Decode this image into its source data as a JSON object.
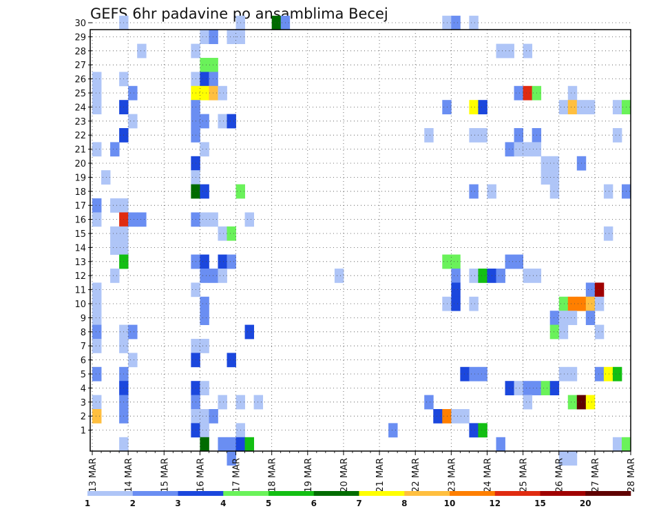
{
  "chart_data": {
    "type": "heatmap",
    "title": "GEFS 6hr padavine po ansamblima Becej",
    "xlabel": "",
    "ylabel": "",
    "x_ticks": [
      "13 MAR",
      "14 MAR",
      "15 MAR",
      "16 MAR",
      "17 MAR",
      "18 MAR",
      "19 MAR",
      "20 MAR",
      "21 MAR",
      "22 MAR",
      "23 MAR",
      "24 MAR",
      "25 MAR",
      "26 MAR",
      "27 MAR",
      "28 MAR"
    ],
    "xlim": [
      0,
      60
    ],
    "x_unit": "6-hour steps after 13 MAR 00Z",
    "y_ticks": [
      1,
      2,
      3,
      4,
      5,
      6,
      7,
      8,
      9,
      10,
      11,
      12,
      13,
      14,
      15,
      16,
      17,
      18,
      19,
      20,
      21,
      22,
      23,
      24,
      25,
      26,
      27,
      28,
      29,
      30
    ],
    "ylim": [
      0,
      30
    ],
    "grid": true,
    "legend": {
      "placement": "bottom",
      "labels": [
        "1",
        "2",
        "3",
        "4",
        "5",
        "6",
        "7",
        "8",
        "10",
        "12",
        "15",
        "20"
      ],
      "colors": [
        "#afc5f7",
        "#6a8ef2",
        "#1b47dd",
        "#6af25a",
        "#13bf13",
        "#006b00",
        "#ffff00",
        "#ffbf3f",
        "#ff7f00",
        "#e02b10",
        "#a00000",
        "#5f0000"
      ]
    },
    "cells": [
      [
        3,
        30,
        1
      ],
      [
        16,
        30,
        1
      ],
      [
        20,
        30,
        6
      ],
      [
        21,
        30,
        2
      ],
      [
        39,
        30,
        1
      ],
      [
        40,
        30,
        2
      ],
      [
        42,
        30,
        1
      ],
      [
        12,
        29,
        1
      ],
      [
        13,
        29,
        2
      ],
      [
        15,
        29,
        1
      ],
      [
        16,
        29,
        1
      ],
      [
        5,
        28,
        1
      ],
      [
        11,
        28,
        1
      ],
      [
        45,
        28,
        1
      ],
      [
        46,
        28,
        1
      ],
      [
        48,
        28,
        1
      ],
      [
        12,
        27,
        4
      ],
      [
        13,
        27,
        4
      ],
      [
        0,
        26,
        1
      ],
      [
        3,
        26,
        1
      ],
      [
        11,
        26,
        1
      ],
      [
        12,
        26,
        3
      ],
      [
        13,
        26,
        2
      ],
      [
        0,
        25,
        1
      ],
      [
        4,
        25,
        2
      ],
      [
        11,
        25,
        7
      ],
      [
        12,
        25,
        7
      ],
      [
        13,
        25,
        8
      ],
      [
        14,
        25,
        1
      ],
      [
        47,
        25,
        2
      ],
      [
        48,
        25,
        10
      ],
      [
        49,
        25,
        4
      ],
      [
        53,
        25,
        1
      ],
      [
        0,
        24,
        1
      ],
      [
        3,
        24,
        3
      ],
      [
        11,
        24,
        2
      ],
      [
        39,
        24,
        2
      ],
      [
        42,
        24,
        7
      ],
      [
        43,
        24,
        3
      ],
      [
        52,
        24,
        1
      ],
      [
        53,
        24,
        8
      ],
      [
        54,
        24,
        1
      ],
      [
        55,
        24,
        1
      ],
      [
        58,
        24,
        1
      ],
      [
        59,
        24,
        4
      ],
      [
        4,
        23,
        1
      ],
      [
        11,
        23,
        2
      ],
      [
        12,
        23,
        2
      ],
      [
        14,
        23,
        1
      ],
      [
        15,
        23,
        3
      ],
      [
        3,
        22,
        3
      ],
      [
        11,
        22,
        2
      ],
      [
        37,
        22,
        1
      ],
      [
        42,
        22,
        1
      ],
      [
        43,
        22,
        1
      ],
      [
        47,
        22,
        2
      ],
      [
        49,
        22,
        2
      ],
      [
        58,
        22,
        1
      ],
      [
        0,
        21,
        1
      ],
      [
        2,
        21,
        2
      ],
      [
        12,
        21,
        1
      ],
      [
        46,
        21,
        2
      ],
      [
        47,
        21,
        1
      ],
      [
        48,
        21,
        1
      ],
      [
        49,
        21,
        1
      ],
      [
        11,
        20,
        3
      ],
      [
        50,
        20,
        1
      ],
      [
        51,
        20,
        1
      ],
      [
        54,
        20,
        2
      ],
      [
        1,
        19,
        1
      ],
      [
        11,
        19,
        1
      ],
      [
        50,
        19,
        1
      ],
      [
        51,
        19,
        1
      ],
      [
        11,
        18,
        6
      ],
      [
        12,
        18,
        3
      ],
      [
        16,
        18,
        4
      ],
      [
        42,
        18,
        2
      ],
      [
        44,
        18,
        1
      ],
      [
        51,
        18,
        1
      ],
      [
        57,
        18,
        1
      ],
      [
        59,
        18,
        2
      ],
      [
        0,
        17,
        2
      ],
      [
        2,
        17,
        1
      ],
      [
        3,
        17,
        1
      ],
      [
        0,
        16,
        1
      ],
      [
        3,
        16,
        10
      ],
      [
        4,
        16,
        2
      ],
      [
        5,
        16,
        2
      ],
      [
        11,
        16,
        2
      ],
      [
        12,
        16,
        1
      ],
      [
        13,
        16,
        1
      ],
      [
        17,
        16,
        1
      ],
      [
        2,
        15,
        1
      ],
      [
        3,
        15,
        1
      ],
      [
        14,
        15,
        1
      ],
      [
        15,
        15,
        4
      ],
      [
        57,
        15,
        1
      ],
      [
        2,
        14,
        1
      ],
      [
        3,
        14,
        1
      ],
      [
        3,
        13,
        5
      ],
      [
        11,
        13,
        2
      ],
      [
        12,
        13,
        3
      ],
      [
        14,
        13,
        3
      ],
      [
        15,
        13,
        2
      ],
      [
        39,
        13,
        4
      ],
      [
        40,
        13,
        4
      ],
      [
        46,
        13,
        2
      ],
      [
        47,
        13,
        2
      ],
      [
        2,
        12,
        1
      ],
      [
        12,
        12,
        2
      ],
      [
        13,
        12,
        2
      ],
      [
        14,
        12,
        1
      ],
      [
        27,
        12,
        1
      ],
      [
        40,
        12,
        2
      ],
      [
        42,
        12,
        1
      ],
      [
        43,
        12,
        5
      ],
      [
        44,
        12,
        3
      ],
      [
        45,
        12,
        2
      ],
      [
        48,
        12,
        1
      ],
      [
        49,
        12,
        1
      ],
      [
        0,
        11,
        1
      ],
      [
        11,
        11,
        1
      ],
      [
        40,
        11,
        3
      ],
      [
        55,
        11,
        2
      ],
      [
        56,
        11,
        11
      ],
      [
        0,
        10,
        1
      ],
      [
        12,
        10,
        2
      ],
      [
        39,
        10,
        1
      ],
      [
        40,
        10,
        3
      ],
      [
        42,
        10,
        1
      ],
      [
        52,
        10,
        4
      ],
      [
        53,
        10,
        9
      ],
      [
        54,
        10,
        9
      ],
      [
        55,
        10,
        8
      ],
      [
        56,
        10,
        1
      ],
      [
        0,
        9,
        1
      ],
      [
        12,
        9,
        2
      ],
      [
        51,
        9,
        2
      ],
      [
        52,
        9,
        1
      ],
      [
        53,
        9,
        1
      ],
      [
        55,
        9,
        2
      ],
      [
        0,
        8,
        2
      ],
      [
        3,
        8,
        1
      ],
      [
        4,
        8,
        2
      ],
      [
        17,
        8,
        3
      ],
      [
        51,
        8,
        4
      ],
      [
        52,
        8,
        1
      ],
      [
        56,
        8,
        1
      ],
      [
        0,
        7,
        1
      ],
      [
        3,
        7,
        1
      ],
      [
        11,
        7,
        1
      ],
      [
        12,
        7,
        1
      ],
      [
        4,
        6,
        1
      ],
      [
        11,
        6,
        3
      ],
      [
        15,
        6,
        3
      ],
      [
        0,
        5,
        2
      ],
      [
        3,
        5,
        2
      ],
      [
        41,
        5,
        3
      ],
      [
        42,
        5,
        2
      ],
      [
        43,
        5,
        2
      ],
      [
        52,
        5,
        1
      ],
      [
        53,
        5,
        1
      ],
      [
        56,
        5,
        2
      ],
      [
        57,
        5,
        7
      ],
      [
        58,
        5,
        5
      ],
      [
        3,
        4,
        3
      ],
      [
        11,
        4,
        3
      ],
      [
        12,
        4,
        1
      ],
      [
        46,
        4,
        3
      ],
      [
        47,
        4,
        1
      ],
      [
        48,
        4,
        2
      ],
      [
        49,
        4,
        2
      ],
      [
        50,
        4,
        4
      ],
      [
        51,
        4,
        3
      ],
      [
        0,
        3,
        1
      ],
      [
        3,
        3,
        2
      ],
      [
        11,
        3,
        2
      ],
      [
        14,
        3,
        1
      ],
      [
        16,
        3,
        1
      ],
      [
        18,
        3,
        1
      ],
      [
        37,
        3,
        2
      ],
      [
        48,
        3,
        1
      ],
      [
        53,
        3,
        4
      ],
      [
        54,
        3,
        12
      ],
      [
        55,
        3,
        7
      ],
      [
        0,
        2,
        8
      ],
      [
        3,
        2,
        2
      ],
      [
        11,
        2,
        1
      ],
      [
        12,
        2,
        1
      ],
      [
        13,
        2,
        2
      ],
      [
        38,
        2,
        3
      ],
      [
        39,
        2,
        9
      ],
      [
        40,
        2,
        1
      ],
      [
        41,
        2,
        1
      ],
      [
        11,
        1,
        3
      ],
      [
        12,
        1,
        1
      ],
      [
        16,
        1,
        1
      ],
      [
        33,
        1,
        2
      ],
      [
        42,
        1,
        3
      ],
      [
        43,
        1,
        5
      ],
      [
        3,
        0,
        1
      ],
      [
        12,
        0,
        6
      ],
      [
        14,
        0,
        2
      ],
      [
        15,
        0,
        2
      ],
      [
        16,
        0,
        3
      ],
      [
        17,
        0,
        5
      ],
      [
        45,
        0,
        2
      ],
      [
        58,
        0,
        1
      ],
      [
        59,
        0,
        4
      ],
      [
        15,
        -1,
        2
      ],
      [
        52,
        -1,
        1
      ],
      [
        53,
        -1,
        1
      ]
    ]
  }
}
